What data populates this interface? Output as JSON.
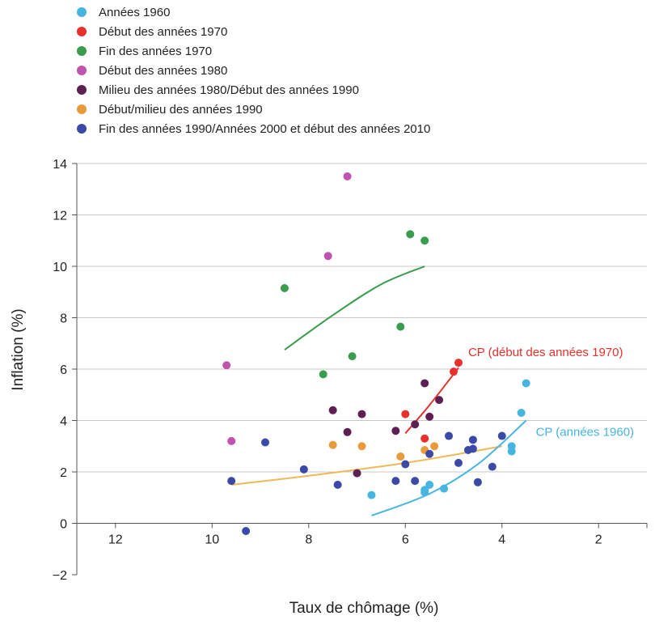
{
  "chart_data": {
    "type": "scatter",
    "title": "",
    "xlabel": "Taux de chômage (%)",
    "ylabel": "Inflation (%)",
    "xlim": [
      12.8,
      1
    ],
    "ylim": [
      -2,
      14
    ],
    "x_ticks": [
      12,
      10,
      8,
      6,
      4,
      2
    ],
    "y_ticks": [
      14,
      12,
      10,
      8,
      6,
      4,
      2,
      0,
      -2
    ],
    "grid": true,
    "legend_position": "top-left",
    "series": [
      {
        "name": "Années 1960",
        "color": "#47b5e0",
        "points": [
          [
            6.7,
            1.1
          ],
          [
            5.6,
            1.3
          ],
          [
            5.6,
            1.2
          ],
          [
            5.5,
            1.5
          ],
          [
            5.2,
            1.35
          ],
          [
            4.5,
            1.6
          ],
          [
            3.8,
            3.0
          ],
          [
            3.8,
            2.8
          ],
          [
            3.6,
            4.3
          ],
          [
            3.5,
            5.45
          ]
        ]
      },
      {
        "name": "Début des années 1970",
        "color": "#e8312d",
        "points": [
          [
            6.0,
            4.25
          ],
          [
            5.6,
            3.3
          ],
          [
            5.0,
            5.9
          ],
          [
            4.9,
            6.25
          ]
        ]
      },
      {
        "name": "Fin des années 1970",
        "color": "#3a9c4e",
        "points": [
          [
            8.5,
            9.15
          ],
          [
            7.7,
            5.8
          ],
          [
            7.1,
            6.5
          ],
          [
            6.1,
            7.65
          ],
          [
            5.9,
            11.25
          ],
          [
            5.6,
            11.0
          ]
        ]
      },
      {
        "name": "Début des années 1980",
        "color": "#c052b0",
        "points": [
          [
            9.7,
            6.15
          ],
          [
            9.6,
            3.2
          ],
          [
            7.6,
            10.4
          ],
          [
            7.2,
            13.5
          ]
        ]
      },
      {
        "name": "Milieu des années 1980/Début des années 1990",
        "color": "#5e1f52",
        "points": [
          [
            7.5,
            4.4
          ],
          [
            7.2,
            3.55
          ],
          [
            7.0,
            1.95
          ],
          [
            6.9,
            4.25
          ],
          [
            6.2,
            3.6
          ],
          [
            5.8,
            3.85
          ],
          [
            5.6,
            5.45
          ],
          [
            5.5,
            4.15
          ],
          [
            5.3,
            4.8
          ]
        ]
      },
      {
        "name": "Début/milieu des années 1990",
        "color": "#e99a3a",
        "points": [
          [
            7.5,
            3.05
          ],
          [
            6.9,
            3.0
          ],
          [
            6.1,
            2.6
          ],
          [
            5.6,
            2.85
          ],
          [
            5.4,
            3.0
          ]
        ]
      },
      {
        "name": "Fin des années 1990/Années 2000 et début des années 2010",
        "color": "#3b4aa6",
        "points": [
          [
            9.6,
            1.65
          ],
          [
            9.3,
            -0.3
          ],
          [
            8.9,
            3.15
          ],
          [
            8.1,
            2.1
          ],
          [
            7.4,
            1.5
          ],
          [
            6.2,
            1.65
          ],
          [
            6.0,
            2.3
          ],
          [
            5.8,
            1.65
          ],
          [
            5.5,
            2.7
          ],
          [
            5.1,
            3.4
          ],
          [
            4.9,
            2.35
          ],
          [
            4.7,
            2.85
          ],
          [
            4.6,
            2.9
          ],
          [
            4.6,
            3.25
          ],
          [
            4.5,
            1.6
          ],
          [
            4.2,
            2.2
          ],
          [
            4.0,
            3.4
          ]
        ]
      }
    ],
    "curves": [
      {
        "name": "Fin des années 1970",
        "color": "#3a9c4e",
        "points": [
          [
            8.5,
            6.75
          ],
          [
            7.5,
            8.1
          ],
          [
            6.5,
            9.3
          ],
          [
            5.6,
            10.0
          ]
        ]
      },
      {
        "name": "Début des années 1970",
        "color": "#e8312d",
        "points": [
          [
            6.0,
            3.5
          ],
          [
            5.5,
            4.6
          ],
          [
            4.9,
            6.05
          ]
        ]
      },
      {
        "name": "Début/milieu des années 1990",
        "color": "#f0b95a",
        "points": [
          [
            9.6,
            1.5
          ],
          [
            8.0,
            1.85
          ],
          [
            6.0,
            2.35
          ],
          [
            4.0,
            3.0
          ]
        ]
      },
      {
        "name": "Années 1960",
        "color": "#47b5e0",
        "points": [
          [
            6.7,
            0.3
          ],
          [
            5.5,
            1.15
          ],
          [
            4.5,
            2.3
          ],
          [
            3.5,
            4.0
          ]
        ]
      }
    ],
    "annotations": [
      {
        "text": "CP (début des années 1970)",
        "color": "#e8312d",
        "x": 4.7,
        "y": 6.5
      },
      {
        "text": "CP (années 1960)",
        "color": "#47b5e0",
        "x": 3.3,
        "y": 3.4
      }
    ]
  }
}
